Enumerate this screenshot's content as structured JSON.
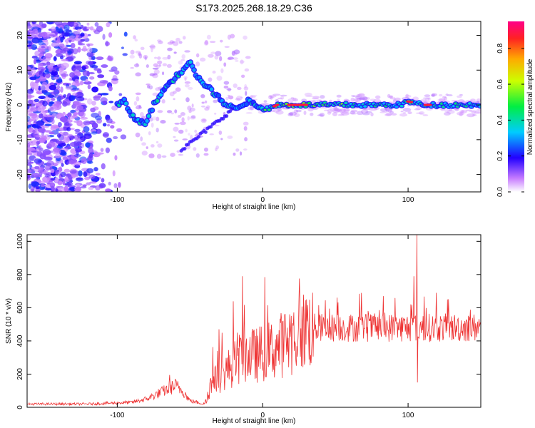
{
  "title": "S173.2025.268.18.29.C36",
  "chart_data": [
    {
      "type": "heatmap",
      "title": "S173.2025.268.18.29.C36",
      "xlabel": "Height of straight line (km)",
      "ylabel": "Frequency (Hz)",
      "xlim": [
        -162,
        150
      ],
      "ylim": [
        -25,
        24
      ],
      "xticks": [
        -100,
        0,
        100
      ],
      "yticks": [
        -20,
        -10,
        0,
        10,
        20
      ],
      "ridge": {
        "x": [
          -100,
          -95,
          -90,
          -85,
          -80,
          -75,
          -70,
          -65,
          -60,
          -55,
          -50,
          -45,
          -40,
          -35,
          -30,
          -25,
          -20,
          -15,
          -10,
          -5,
          0,
          5,
          10,
          20,
          40,
          60,
          80,
          95,
          100,
          110,
          120,
          150
        ],
        "y": [
          0,
          1,
          -3,
          -5,
          -5,
          0,
          3,
          6,
          8,
          10,
          13,
          8,
          6,
          4,
          2,
          0,
          -1,
          0,
          1,
          0,
          -1,
          -1,
          0,
          0,
          0,
          0,
          0,
          0,
          1,
          0,
          0,
          0
        ]
      },
      "colorbar": {
        "label": "Normalized spectral amplitude",
        "range": [
          0,
          0.95
        ],
        "ticks": [
          0.0,
          0.2,
          0.4,
          0.6,
          0.8
        ],
        "tick_labels": [
          "0.0",
          "0.2",
          "0.4",
          "0.6",
          "0.8"
        ]
      }
    },
    {
      "type": "line",
      "xlabel": "Height of straight line (km)",
      "ylabel": "SNR (10 * v/v)",
      "xlim": [
        -162,
        150
      ],
      "ylim": [
        0,
        1040
      ],
      "xticks": [
        -100,
        0,
        100
      ],
      "yticks": [
        0,
        200,
        400,
        600,
        800,
        1000
      ],
      "color": "#ee3333",
      "envelope": {
        "x": [
          -162,
          -120,
          -90,
          -80,
          -70,
          -60,
          -55,
          -50,
          -40,
          -35,
          -30,
          -25,
          -20,
          -15,
          -10,
          -5,
          0,
          5,
          10,
          15,
          20,
          25,
          30,
          35,
          40,
          60,
          80,
          100,
          120,
          150
        ],
        "y": [
          20,
          20,
          30,
          50,
          90,
          130,
          100,
          40,
          20,
          150,
          180,
          220,
          260,
          300,
          320,
          310,
          330,
          340,
          360,
          390,
          420,
          450,
          470,
          480,
          480,
          480,
          480,
          480,
          480,
          480
        ]
      },
      "spikes": [
        {
          "x": -64,
          "y": 195
        },
        {
          "x": -31,
          "y": 340
        },
        {
          "x": -30,
          "y": 470
        },
        {
          "x": -14,
          "y": 790
        },
        {
          "x": 30,
          "y": 650
        },
        {
          "x": 102,
          "y": 620
        },
        {
          "x": 104,
          "y": 790
        },
        {
          "x": 106,
          "y": 1040
        },
        {
          "x": 106.5,
          "y": 150
        }
      ]
    }
  ]
}
